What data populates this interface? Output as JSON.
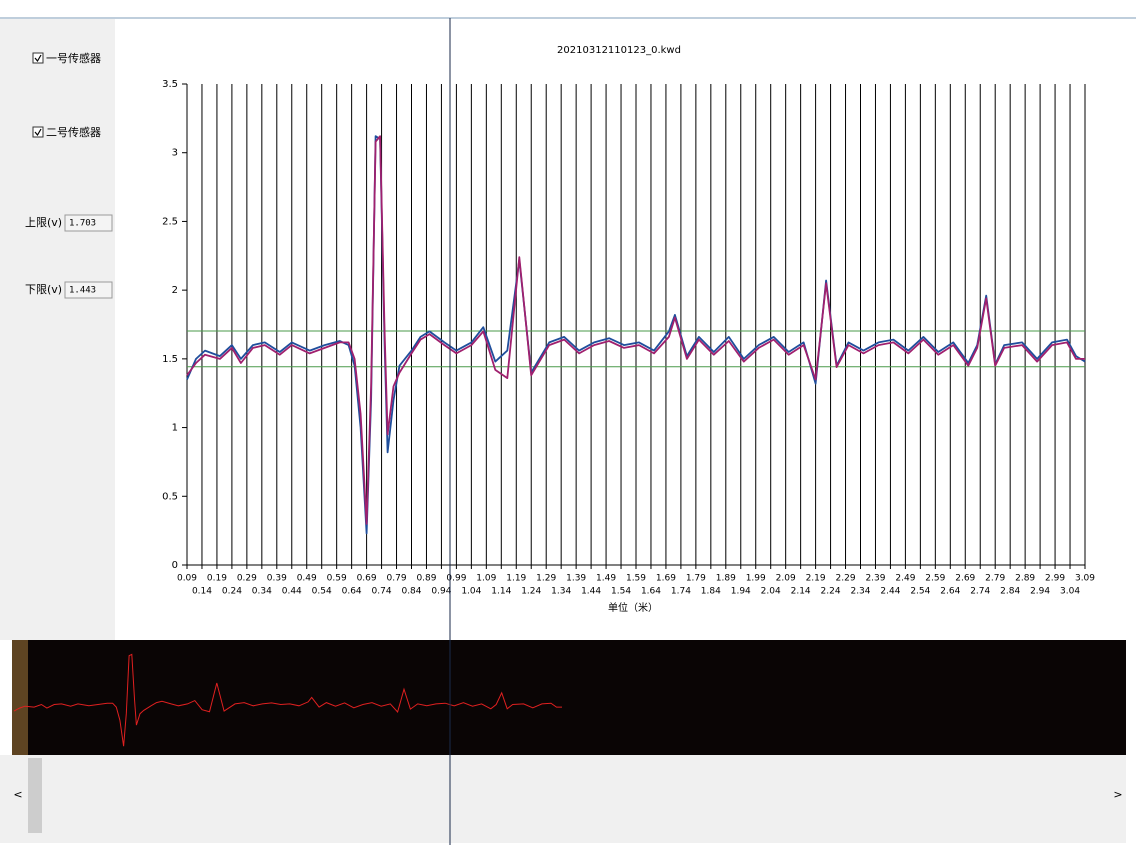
{
  "chart_data": {
    "type": "line",
    "title": "20210312110123_0.kwd",
    "x_label": "单位（米）",
    "xlim": [
      0.09,
      3.09
    ],
    "ylim": [
      0,
      3.5
    ],
    "xticks": [
      0.09,
      0.14,
      0.19,
      0.24,
      0.29,
      0.34,
      0.39,
      0.44,
      0.49,
      0.54,
      0.59,
      0.64,
      0.69,
      0.74,
      0.79,
      0.84,
      0.89,
      0.94,
      0.99,
      1.04,
      1.09,
      1.14,
      1.19,
      1.24,
      1.29,
      1.34,
      1.39,
      1.44,
      1.49,
      1.54,
      1.59,
      1.64,
      1.69,
      1.74,
      1.79,
      1.84,
      1.89,
      1.94,
      1.99,
      2.04,
      2.09,
      2.14,
      2.19,
      2.24,
      2.29,
      2.34,
      2.39,
      2.44,
      2.49,
      2.54,
      2.59,
      2.64,
      2.69,
      2.74,
      2.79,
      2.84,
      2.89,
      2.94,
      2.99,
      3.04,
      3.09
    ],
    "yticks": [
      0,
      0.5,
      1,
      1.5,
      2,
      2.5,
      3,
      3.5
    ],
    "grid": true,
    "x": [
      0.09,
      0.12,
      0.15,
      0.2,
      0.24,
      0.27,
      0.31,
      0.35,
      0.4,
      0.44,
      0.5,
      0.55,
      0.6,
      0.63,
      0.65,
      0.67,
      0.69,
      0.705,
      0.72,
      0.735,
      0.75,
      0.76,
      0.78,
      0.8,
      0.84,
      0.87,
      0.9,
      0.95,
      0.99,
      1.04,
      1.08,
      1.12,
      1.16,
      1.2,
      1.24,
      1.3,
      1.35,
      1.4,
      1.45,
      1.5,
      1.55,
      1.6,
      1.65,
      1.7,
      1.72,
      1.76,
      1.8,
      1.85,
      1.9,
      1.95,
      2.0,
      2.05,
      2.1,
      2.15,
      2.19,
      2.225,
      2.26,
      2.3,
      2.35,
      2.4,
      2.45,
      2.5,
      2.55,
      2.6,
      2.65,
      2.7,
      2.73,
      2.76,
      2.79,
      2.82,
      2.88,
      2.93,
      2.98,
      3.03,
      3.06,
      3.09
    ],
    "series": [
      {
        "name": "一号传感器",
        "color": "#1f4e9c",
        "values": [
          1.35,
          1.5,
          1.56,
          1.52,
          1.6,
          1.5,
          1.6,
          1.62,
          1.55,
          1.62,
          1.56,
          1.6,
          1.63,
          1.6,
          1.45,
          1.0,
          0.23,
          1.2,
          3.12,
          3.1,
          1.6,
          0.82,
          1.2,
          1.45,
          1.56,
          1.66,
          1.7,
          1.62,
          1.56,
          1.62,
          1.73,
          1.48,
          1.56,
          2.22,
          1.4,
          1.62,
          1.66,
          1.56,
          1.62,
          1.65,
          1.6,
          1.62,
          1.56,
          1.7,
          1.82,
          1.52,
          1.66,
          1.55,
          1.66,
          1.5,
          1.6,
          1.66,
          1.55,
          1.62,
          1.32,
          2.07,
          1.45,
          1.62,
          1.56,
          1.62,
          1.64,
          1.56,
          1.66,
          1.55,
          1.62,
          1.47,
          1.6,
          1.96,
          1.46,
          1.6,
          1.62,
          1.5,
          1.62,
          1.64,
          1.52,
          1.48
        ]
      },
      {
        "name": "二号传感器",
        "color": "#a0206e",
        "values": [
          1.38,
          1.47,
          1.53,
          1.5,
          1.58,
          1.47,
          1.58,
          1.6,
          1.53,
          1.6,
          1.54,
          1.58,
          1.62,
          1.62,
          1.5,
          1.1,
          0.3,
          1.3,
          3.08,
          3.12,
          1.7,
          0.95,
          1.3,
          1.4,
          1.54,
          1.64,
          1.68,
          1.6,
          1.54,
          1.6,
          1.7,
          1.42,
          1.36,
          2.24,
          1.38,
          1.6,
          1.64,
          1.54,
          1.6,
          1.63,
          1.58,
          1.6,
          1.54,
          1.66,
          1.8,
          1.5,
          1.64,
          1.53,
          1.63,
          1.48,
          1.58,
          1.64,
          1.53,
          1.6,
          1.35,
          2.05,
          1.44,
          1.6,
          1.54,
          1.6,
          1.62,
          1.54,
          1.64,
          1.53,
          1.6,
          1.45,
          1.58,
          1.94,
          1.45,
          1.58,
          1.6,
          1.48,
          1.6,
          1.62,
          1.5,
          1.5
        ]
      }
    ],
    "thresholds": [
      {
        "label": "上限(v)",
        "value": 1.703
      },
      {
        "label": "下限(v)",
        "value": 1.443
      }
    ],
    "threshold_color": "#4a9a4a",
    "overview_color": "#e02020"
  },
  "scrollbar": {
    "left": "<",
    "right": ">"
  }
}
